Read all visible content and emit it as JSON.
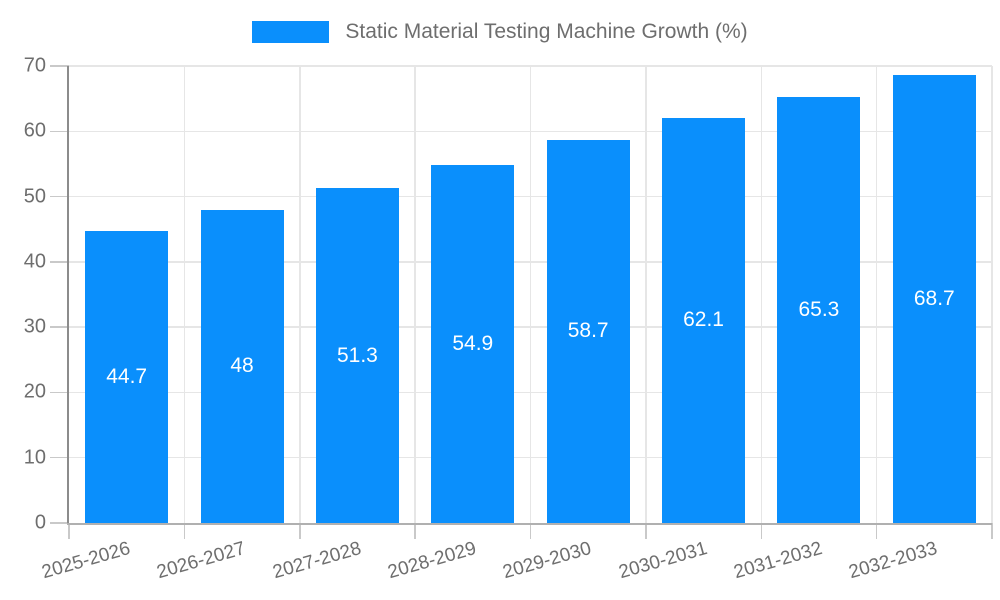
{
  "chart_data": {
    "type": "bar",
    "title": "Static Material Testing Machine Growth (%)",
    "categories": [
      "2025-2026",
      "2026-2027",
      "2027-2028",
      "2028-2029",
      "2029-2030",
      "2030-2031",
      "2031-2032",
      "2032-2033"
    ],
    "values": [
      44.7,
      48,
      51.3,
      54.9,
      58.7,
      62.1,
      65.3,
      68.7
    ],
    "value_labels": [
      "44.7",
      "48",
      "51.3",
      "54.9",
      "58.7",
      "62.1",
      "65.3",
      "68.7"
    ],
    "ylim": [
      0,
      70
    ],
    "yticks": [
      0,
      10,
      20,
      30,
      40,
      50,
      60,
      70
    ],
    "ytick_labels": [
      "0",
      "10",
      "20",
      "30",
      "40",
      "50",
      "60",
      "70"
    ],
    "xlabel": "",
    "ylabel": "",
    "grid": true,
    "legend_position": "top",
    "bar_label_position": "center"
  },
  "colors": {
    "bar": "#0a8ffc",
    "grid": "#e6e6e6",
    "tick": "#c9c9c9",
    "axis_y": "#8c8c8c",
    "axis_x": "#b0b0b0",
    "text": "#6e6e6e",
    "value_text": "#ffffff",
    "background": "#ffffff"
  }
}
